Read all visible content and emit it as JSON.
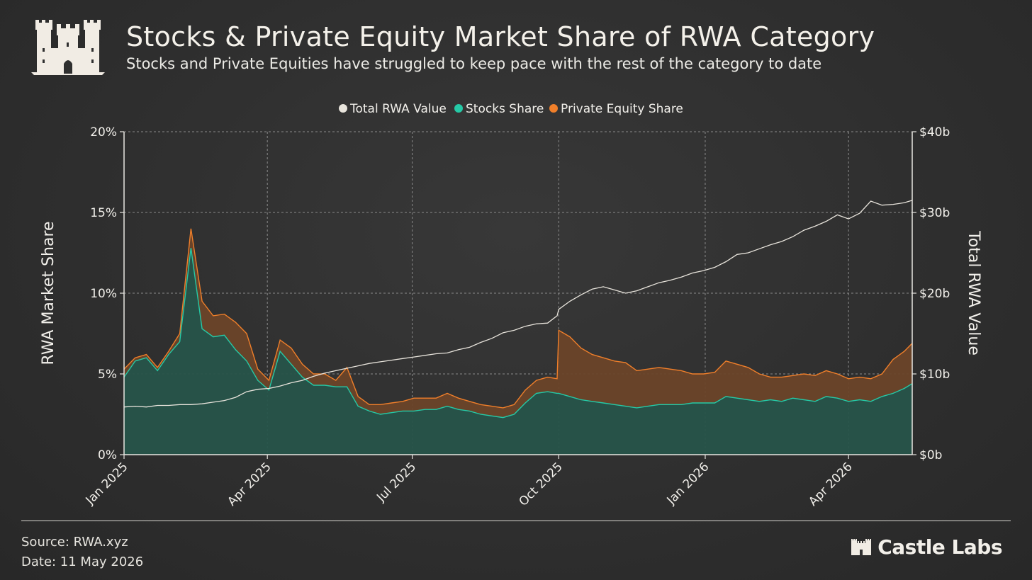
{
  "header": {
    "title": "Stocks & Private Equity Market Share of RWA Category",
    "subtitle": "Stocks and Private Equities have struggled to keep pace with the rest of the category to date"
  },
  "footer": {
    "source": "Source: RWA.xyz",
    "date": "Date: 11 May 2026",
    "brand": "Castle Labs"
  },
  "colors": {
    "total": "#e8e4dc",
    "stocks": "#25c9a6",
    "stocks_fill": "#27544a",
    "pe": "#f07f2a",
    "pe_fill": "#6b4429",
    "grid": "#8a8a8a",
    "axis": "#e9e7e2"
  },
  "icons": {
    "logo": "castle-icon",
    "brand_logo": "castle-icon"
  },
  "chart_data": {
    "type": "area",
    "legend": {
      "position": "top-center",
      "entries": [
        "Total RWA Value",
        "Stocks Share",
        "Private Equity Share"
      ]
    },
    "ylabel_left": "RWA Market Share",
    "ylabel_right": "Total RWA Value",
    "y_left_ticks": [
      "0%",
      "5%",
      "10%",
      "15%",
      "20%"
    ],
    "y_right_ticks": [
      "$0b",
      "$10b",
      "$20b",
      "$30b",
      "$40b"
    ],
    "x_ticks": [
      "Jan 2025",
      "Apr 2025",
      "Jul 2025",
      "Oct 2025",
      "Jan 2026",
      "Apr 2026"
    ],
    "ylim_left": [
      0,
      20
    ],
    "ylim_right": [
      0,
      40
    ],
    "grid": true,
    "x": [
      "2025-01-01",
      "2025-01-08",
      "2025-01-15",
      "2025-01-22",
      "2025-01-29",
      "2025-02-05",
      "2025-02-12",
      "2025-02-19",
      "2025-02-26",
      "2025-03-05",
      "2025-03-12",
      "2025-03-19",
      "2025-03-26",
      "2025-04-02",
      "2025-04-09",
      "2025-04-16",
      "2025-04-23",
      "2025-04-30",
      "2025-05-07",
      "2025-05-14",
      "2025-05-21",
      "2025-05-28",
      "2025-06-04",
      "2025-06-11",
      "2025-06-18",
      "2025-06-25",
      "2025-07-02",
      "2025-07-09",
      "2025-07-16",
      "2025-07-23",
      "2025-07-30",
      "2025-08-06",
      "2025-08-13",
      "2025-08-20",
      "2025-08-27",
      "2025-09-03",
      "2025-09-10",
      "2025-09-17",
      "2025-09-24",
      "2025-09-30",
      "2025-10-01",
      "2025-10-08",
      "2025-10-15",
      "2025-10-22",
      "2025-10-29",
      "2025-11-05",
      "2025-11-12",
      "2025-11-19",
      "2025-11-26",
      "2025-12-03",
      "2025-12-10",
      "2025-12-17",
      "2025-12-24",
      "2025-12-31",
      "2026-01-07",
      "2026-01-14",
      "2026-01-21",
      "2026-01-28",
      "2026-02-04",
      "2026-02-11",
      "2026-02-18",
      "2026-02-25",
      "2026-03-04",
      "2026-03-11",
      "2026-03-18",
      "2026-03-25",
      "2026-04-01",
      "2026-04-08",
      "2026-04-15",
      "2026-04-22",
      "2026-04-29",
      "2026-05-06",
      "2026-05-11"
    ],
    "series": [
      {
        "name": "Stocks Share",
        "axis": "left",
        "values": [
          4.8,
          5.8,
          6.0,
          5.2,
          6.2,
          7.0,
          12.8,
          7.8,
          7.3,
          7.4,
          6.5,
          5.8,
          4.6,
          4.0,
          6.4,
          5.6,
          4.8,
          4.3,
          4.3,
          4.2,
          4.2,
          3.0,
          2.7,
          2.5,
          2.6,
          2.7,
          2.7,
          2.8,
          2.8,
          3.0,
          2.8,
          2.7,
          2.5,
          2.4,
          2.3,
          2.5,
          3.2,
          3.8,
          3.9,
          3.8,
          3.8,
          3.6,
          3.4,
          3.3,
          3.2,
          3.1,
          3.0,
          2.9,
          3.0,
          3.1,
          3.1,
          3.1,
          3.2,
          3.2,
          3.2,
          3.6,
          3.5,
          3.4,
          3.3,
          3.4,
          3.3,
          3.5,
          3.4,
          3.3,
          3.6,
          3.5,
          3.3,
          3.4,
          3.3,
          3.6,
          3.8,
          4.1,
          4.4
        ]
      },
      {
        "name": "Private Equity Share",
        "axis": "left",
        "values": [
          5.3,
          6.0,
          6.2,
          5.4,
          6.4,
          7.5,
          14.0,
          9.5,
          8.6,
          8.7,
          8.2,
          7.5,
          5.3,
          4.6,
          7.1,
          6.6,
          5.6,
          5.0,
          5.0,
          4.6,
          5.4,
          3.6,
          3.1,
          3.1,
          3.2,
          3.3,
          3.5,
          3.5,
          3.5,
          3.8,
          3.5,
          3.3,
          3.1,
          3.0,
          2.9,
          3.1,
          4.0,
          4.6,
          4.8,
          4.7,
          7.7,
          7.3,
          6.6,
          6.2,
          6.0,
          5.8,
          5.7,
          5.2,
          5.3,
          5.4,
          5.3,
          5.2,
          5.0,
          5.0,
          5.1,
          5.8,
          5.6,
          5.4,
          5.0,
          4.8,
          4.8,
          4.9,
          5.0,
          4.9,
          5.2,
          5.0,
          4.7,
          4.8,
          4.7,
          5.0,
          5.9,
          6.4,
          6.9
        ]
      },
      {
        "name": "Total RWA Value",
        "axis": "right",
        "values": [
          5.9,
          6.0,
          5.9,
          6.1,
          6.1,
          6.2,
          6.2,
          6.3,
          6.5,
          6.7,
          7.1,
          7.8,
          8.1,
          8.2,
          8.5,
          8.9,
          9.2,
          9.7,
          10.1,
          10.4,
          10.7,
          11.0,
          11.3,
          11.5,
          11.7,
          11.9,
          12.1,
          12.3,
          12.5,
          12.6,
          13.0,
          13.3,
          13.9,
          14.4,
          15.1,
          15.4,
          15.9,
          16.2,
          16.3,
          17.2,
          18.0,
          19.0,
          19.8,
          20.5,
          20.8,
          20.4,
          20.0,
          20.3,
          20.8,
          21.3,
          21.6,
          22.0,
          22.5,
          22.8,
          23.2,
          23.9,
          24.8,
          25.0,
          25.5,
          26.0,
          26.4,
          27.0,
          27.8,
          28.3,
          28.9,
          29.7,
          29.2,
          29.9,
          31.4,
          30.9,
          31.0,
          31.2,
          31.5
        ]
      }
    ]
  }
}
